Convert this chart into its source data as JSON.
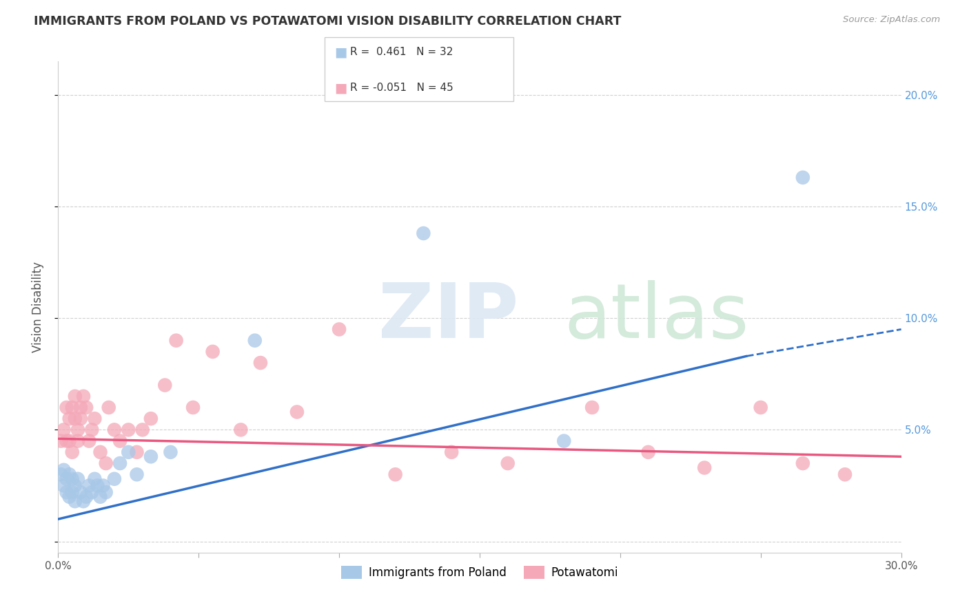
{
  "title": "IMMIGRANTS FROM POLAND VS POTAWATOMI VISION DISABILITY CORRELATION CHART",
  "source": "Source: ZipAtlas.com",
  "ylabel": "Vision Disability",
  "right_yticks": [
    0.0,
    0.05,
    0.1,
    0.15,
    0.2
  ],
  "right_yticklabels": [
    "",
    "5.0%",
    "10.0%",
    "15.0%",
    "20.0%"
  ],
  "xlim": [
    0.0,
    0.3
  ],
  "ylim": [
    -0.005,
    0.215
  ],
  "blue_color": "#a8c8e8",
  "pink_color": "#f4a8b8",
  "blue_line_color": "#3070c8",
  "pink_line_color": "#e85880",
  "blue_scatter_x": [
    0.001,
    0.002,
    0.002,
    0.003,
    0.003,
    0.004,
    0.004,
    0.005,
    0.005,
    0.006,
    0.006,
    0.007,
    0.008,
    0.009,
    0.01,
    0.011,
    0.012,
    0.013,
    0.014,
    0.015,
    0.016,
    0.017,
    0.02,
    0.022,
    0.025,
    0.028,
    0.033,
    0.04,
    0.07,
    0.13,
    0.18,
    0.265
  ],
  "blue_scatter_y": [
    0.03,
    0.025,
    0.032,
    0.022,
    0.028,
    0.02,
    0.03,
    0.022,
    0.028,
    0.018,
    0.025,
    0.028,
    0.022,
    0.018,
    0.02,
    0.025,
    0.022,
    0.028,
    0.025,
    0.02,
    0.025,
    0.022,
    0.028,
    0.035,
    0.04,
    0.03,
    0.038,
    0.04,
    0.09,
    0.138,
    0.045,
    0.163
  ],
  "pink_scatter_x": [
    0.001,
    0.002,
    0.003,
    0.003,
    0.004,
    0.004,
    0.005,
    0.005,
    0.006,
    0.006,
    0.007,
    0.007,
    0.008,
    0.008,
    0.009,
    0.01,
    0.011,
    0.012,
    0.013,
    0.015,
    0.017,
    0.018,
    0.02,
    0.022,
    0.025,
    0.028,
    0.03,
    0.033,
    0.038,
    0.042,
    0.048,
    0.055,
    0.065,
    0.072,
    0.085,
    0.1,
    0.12,
    0.14,
    0.16,
    0.19,
    0.21,
    0.23,
    0.25,
    0.265,
    0.28
  ],
  "pink_scatter_y": [
    0.045,
    0.05,
    0.045,
    0.06,
    0.055,
    0.045,
    0.04,
    0.06,
    0.055,
    0.065,
    0.05,
    0.045,
    0.055,
    0.06,
    0.065,
    0.06,
    0.045,
    0.05,
    0.055,
    0.04,
    0.035,
    0.06,
    0.05,
    0.045,
    0.05,
    0.04,
    0.05,
    0.055,
    0.07,
    0.09,
    0.06,
    0.085,
    0.05,
    0.08,
    0.058,
    0.095,
    0.03,
    0.04,
    0.035,
    0.06,
    0.04,
    0.033,
    0.06,
    0.035,
    0.03
  ],
  "blue_line_start_y": 0.01,
  "blue_line_end_y_solid": 0.083,
  "blue_line_solid_end_x": 0.245,
  "blue_line_end_x": 0.3,
  "blue_line_end_y": 0.095,
  "pink_line_start_y": 0.046,
  "pink_line_end_y": 0.038
}
